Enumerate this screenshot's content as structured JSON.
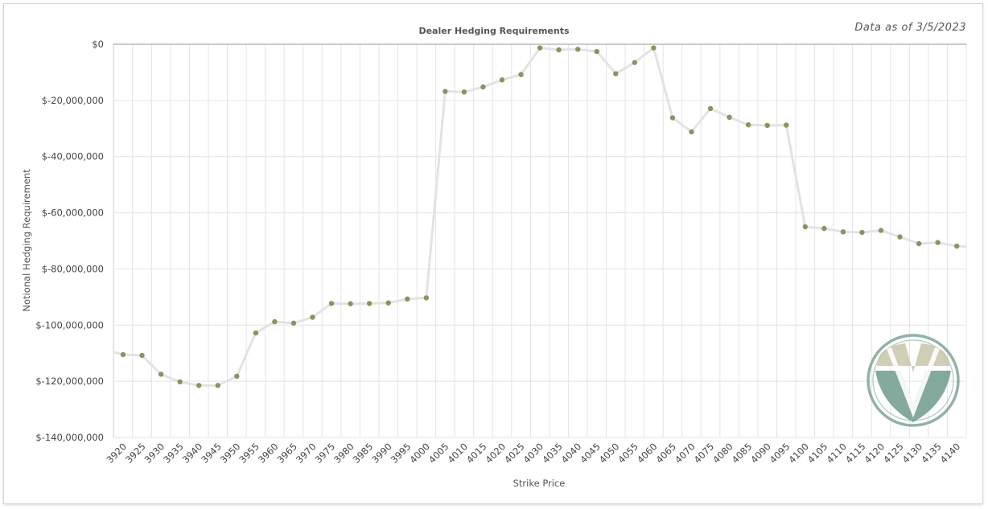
{
  "as_of": "Data as of 3/5/2023",
  "colors": {
    "line": "#e3e3e3",
    "point": "#8c9360",
    "grid": "#e4e4e4",
    "logo_dark": "#6f9b8c",
    "logo_light": "#c8c6a8"
  },
  "logo": {
    "icon": "v-shield-logo-icon"
  },
  "chart_data": {
    "type": "line",
    "title": "Dealer Hedging Requirements",
    "xlabel": "Strike Price",
    "ylabel": "Notional Hedging Requirement",
    "ylim": [
      -140000000,
      0
    ],
    "yticks": [
      0,
      -20000000,
      -40000000,
      -60000000,
      -80000000,
      -100000000,
      -120000000,
      -140000000
    ],
    "ytick_labels": [
      "$0",
      "$-20,000,000",
      "$-40,000,000",
      "$-60,000,000",
      "$-80,000,000",
      "$-100,000,000",
      "$-120,000,000",
      "$-140,000,000"
    ],
    "categories": [
      "3920",
      "3925",
      "3930",
      "3935",
      "3940",
      "3945",
      "3950",
      "3955",
      "3960",
      "3965",
      "3970",
      "3975",
      "3980",
      "3985",
      "3990",
      "3995",
      "4000",
      "4005",
      "4010",
      "4015",
      "4020",
      "4025",
      "4030",
      "4035",
      "4040",
      "4045",
      "4050",
      "4055",
      "4060",
      "4065",
      "4070",
      "4075",
      "4080",
      "4085",
      "4090",
      "4095",
      "4100",
      "4105",
      "4110",
      "4115",
      "4120",
      "4125",
      "4130",
      "4135",
      "4140"
    ],
    "grid": true,
    "series": [
      {
        "values": [
          -110500000,
          -110800000,
          -117500000,
          -120200000,
          -121500000,
          -121500000,
          -118200000,
          -102800000,
          -98800000,
          -99300000,
          -97200000,
          -92300000,
          -92400000,
          -92300000,
          -92100000,
          -90700000,
          -90300000,
          -16800000,
          -17000000,
          -15200000,
          -12700000,
          -10800000,
          -1300000,
          -2000000,
          -1800000,
          -2600000,
          -10500000,
          -6500000,
          -1300000,
          -26200000,
          -31200000,
          -22900000,
          -26000000,
          -28700000,
          -28900000,
          -28800000,
          -65000000,
          -65600000,
          -66800000,
          -67000000,
          -66300000,
          -68600000,
          -71000000,
          -70600000,
          -71900000
        ]
      }
    ]
  }
}
